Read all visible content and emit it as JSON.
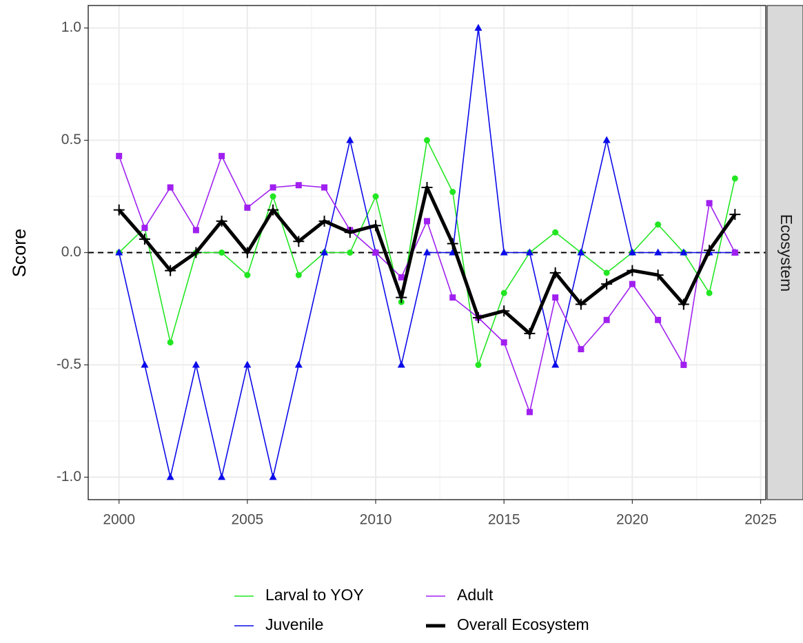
{
  "chart_data": {
    "type": "line",
    "y_label": "Score",
    "facet_label": "Ecosystem",
    "x": [
      2000,
      2001,
      2002,
      2003,
      2004,
      2005,
      2006,
      2007,
      2008,
      2009,
      2010,
      2011,
      2012,
      2013,
      2014,
      2015,
      2016,
      2017,
      2018,
      2019,
      2020,
      2021,
      2022,
      2023,
      2024
    ],
    "series": [
      {
        "name": "Larval to YOY",
        "color": "#22e622",
        "marker": "circle",
        "line_width": 1.6,
        "values": [
          0,
          0.11,
          -0.4,
          0,
          0,
          -0.1,
          0.25,
          -0.1,
          0,
          0,
          0.25,
          -0.22,
          0.5,
          0.27,
          -0.5,
          -0.18,
          0,
          0.09,
          0,
          -0.09,
          0,
          0.125,
          0,
          -0.18,
          0.33
        ]
      },
      {
        "name": "Juvenile",
        "color": "#0a0aea",
        "marker": "triangle",
        "line_width": 1.6,
        "values": [
          0,
          -0.5,
          -1,
          -0.5,
          -1,
          -0.5,
          -1,
          -0.5,
          0,
          0.5,
          0,
          -0.5,
          0,
          0,
          1,
          0,
          0,
          -0.5,
          0,
          0.5,
          0,
          0,
          0,
          0,
          0
        ]
      },
      {
        "name": "Adult",
        "color": "#a020f0",
        "marker": "square",
        "line_width": 1.6,
        "values": [
          0.43,
          0.11,
          0.29,
          0.1,
          0.43,
          0.2,
          0.29,
          0.3,
          0.29,
          0.1,
          0,
          -0.11,
          0.14,
          -0.2,
          -0.29,
          -0.4,
          -0.71,
          -0.2,
          -0.43,
          -0.3,
          -0.14,
          -0.3,
          -0.5,
          0.22,
          0
        ]
      },
      {
        "name": "Overall Ecosystem",
        "color": "#000000",
        "marker": "plus",
        "line_width": 5,
        "values": [
          0.19,
          0.06,
          -0.08,
          0,
          0.14,
          0,
          0.19,
          0.05,
          0.14,
          0.09,
          0.12,
          -0.2,
          0.29,
          0.04,
          -0.29,
          -0.26,
          -0.36,
          -0.09,
          -0.23,
          -0.14,
          -0.08,
          -0.1,
          -0.23,
          0.01,
          0.17
        ]
      }
    ],
    "reference_line": 0,
    "xlim": [
      1998.8,
      2025.2
    ],
    "xticks": [
      2000,
      2005,
      2010,
      2015,
      2020,
      2025
    ],
    "ylim": [
      -1.1,
      1.1
    ],
    "yticks": [
      {
        "value": -1,
        "label": "-1.0"
      },
      -0.5,
      {
        "value": 0,
        "label": "0.0"
      },
      0.5,
      {
        "value": 1,
        "label": "1.0"
      }
    ],
    "grid": true,
    "legend_position": "bottom"
  }
}
